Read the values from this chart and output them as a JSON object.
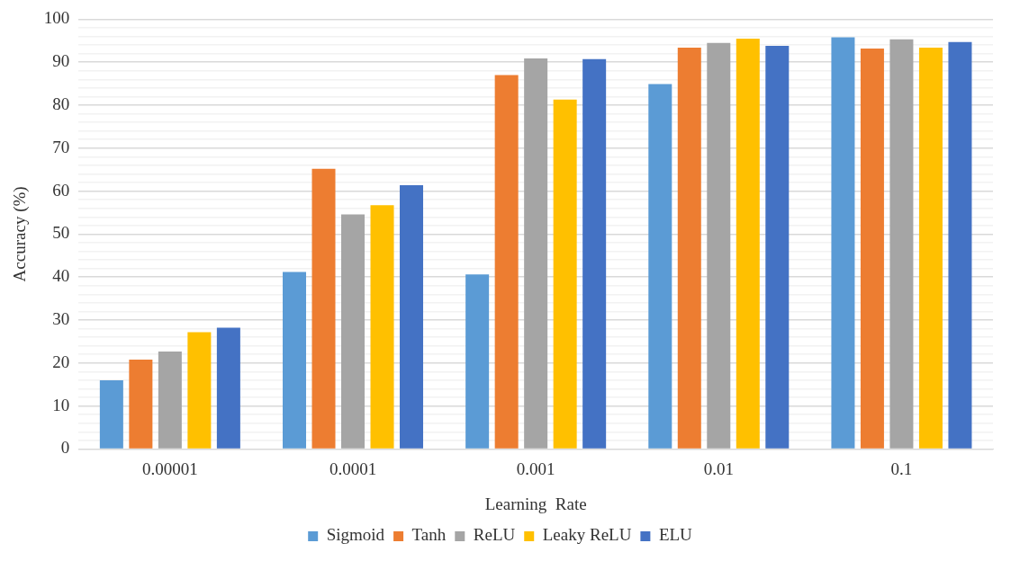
{
  "chart_data": {
    "type": "bar",
    "xlabel": "Learning  Rate",
    "ylabel": "Accuracy (%)",
    "categories": [
      "0.00001",
      "0.0001",
      "0.001",
      "0.01",
      "0.1"
    ],
    "series": [
      {
        "name": "Sigmoid",
        "color": "#5b9bd5",
        "values": [
          16,
          41.2,
          40.6,
          84.9,
          95.8
        ]
      },
      {
        "name": "Tanh",
        "color": "#ed7d31",
        "values": [
          20.8,
          65.2,
          87,
          93.4,
          93.2
        ]
      },
      {
        "name": "ReLU",
        "color": "#a5a5a5",
        "values": [
          22.7,
          54.6,
          90.9,
          94.5,
          95.3
        ]
      },
      {
        "name": "Leaky ReLU",
        "color": "#ffc000",
        "values": [
          27.2,
          56.7,
          81.3,
          95.5,
          93.4
        ]
      },
      {
        "name": "ELU",
        "color": "#4472c4",
        "values": [
          28.2,
          61.4,
          90.7,
          93.8,
          94.7
        ]
      }
    ],
    "ylim": [
      0,
      100
    ],
    "yticks": [
      0,
      {
        "value": 2,
        "label": null
      },
      {
        "value": 4,
        "label": null
      },
      {
        "value": 6,
        "label": null
      },
      {
        "value": 8,
        "label": null
      },
      10,
      {
        "value": 12,
        "label": null
      },
      {
        "value": 14,
        "label": null
      },
      {
        "value": 16,
        "label": null
      },
      {
        "value": 18,
        "label": null
      },
      20,
      {
        "value": 22,
        "label": null
      },
      {
        "value": 24,
        "label": null
      },
      {
        "value": 26,
        "label": null
      },
      {
        "value": 28,
        "label": null
      },
      30,
      {
        "value": 32,
        "label": null
      },
      {
        "value": 34,
        "label": null
      },
      {
        "value": 36,
        "label": null
      },
      {
        "value": 38,
        "label": null
      },
      40,
      {
        "value": 42,
        "label": null
      },
      {
        "value": 44,
        "label": null
      },
      {
        "value": 46,
        "label": null
      },
      {
        "value": 48,
        "label": null
      },
      50,
      {
        "value": 52,
        "label": null
      },
      {
        "value": 54,
        "label": null
      },
      {
        "value": 56,
        "label": null
      },
      {
        "value": 58,
        "label": null
      },
      60,
      {
        "value": 62,
        "label": null
      },
      {
        "value": 64,
        "label": null
      },
      {
        "value": 66,
        "label": null
      },
      {
        "value": 68,
        "label": null
      },
      70,
      {
        "value": 72,
        "label": null
      },
      {
        "value": 74,
        "label": null
      },
      {
        "value": 76,
        "label": null
      },
      {
        "value": 78,
        "label": null
      },
      80,
      {
        "value": 82,
        "label": null
      },
      {
        "value": 84,
        "label": null
      },
      {
        "value": 86,
        "label": null
      },
      {
        "value": 88,
        "label": null
      },
      90,
      {
        "value": 92,
        "label": null
      },
      {
        "value": 94,
        "label": null
      },
      {
        "value": 96,
        "label": null
      },
      {
        "value": 98,
        "label": null
      },
      100
    ],
    "grid": "y",
    "legend": "bottom"
  }
}
